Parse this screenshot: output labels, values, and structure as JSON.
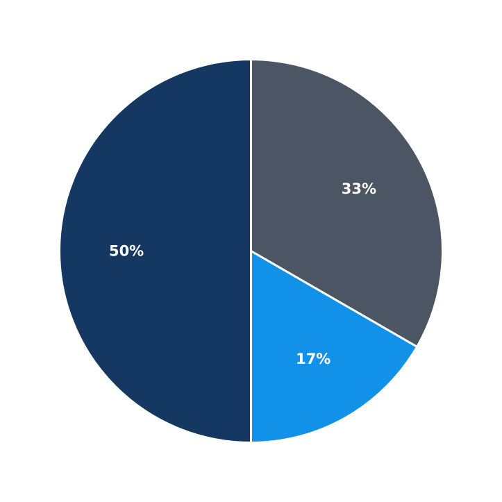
{
  "chart_data": {
    "type": "pie",
    "start_angle": "top",
    "direction": "clockwise",
    "slices": [
      {
        "value": 33.33,
        "label": "33%",
        "color": "#4b5563"
      },
      {
        "value": 16.67,
        "label": "17%",
        "color": "#1192e8"
      },
      {
        "value": 50.0,
        "label": "50%",
        "color": "#143861"
      }
    ],
    "separator_color": "#ffffff"
  }
}
